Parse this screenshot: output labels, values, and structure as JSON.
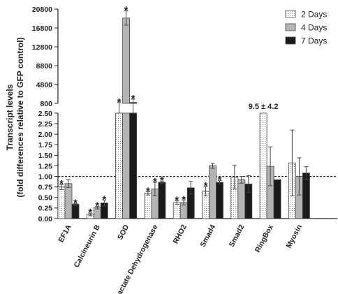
{
  "chart_data": {
    "type": "bar",
    "ylabel": "Transcript levels (fold differences relative to GFP control)",
    "categories": [
      "EF1A",
      "Calcineurin B",
      "SOD",
      "Lactate Dehydrogenase",
      "RHO2",
      "Smad4",
      "Smad2",
      "RingBox",
      "Myosin"
    ],
    "series": [
      {
        "name": "2 Days",
        "pattern": "dotted",
        "values": [
          0.75,
          0.1,
          800,
          0.6,
          0.38,
          0.65,
          0.98,
          9.5,
          1.32
        ],
        "errors": [
          0.06,
          0.03,
          150,
          0.04,
          0.04,
          0.11,
          0.28,
          4.2,
          0.78
        ],
        "significant": [
          true,
          true,
          true,
          true,
          true,
          true,
          false,
          false,
          false
        ]
      },
      {
        "name": "4 Days",
        "color": "#b4b4b4",
        "values": [
          0.83,
          0.26,
          18900,
          0.7,
          0.38,
          1.25,
          0.92,
          1.24,
          1.0
        ],
        "errors": [
          0.09,
          0.03,
          1500,
          0.16,
          0.06,
          0.06,
          0.08,
          0.46,
          0.44
        ],
        "significant": [
          false,
          true,
          true,
          true,
          true,
          false,
          false,
          false,
          false
        ]
      },
      {
        "name": "7 Days",
        "color": "#1a1a1a",
        "values": [
          0.34,
          0.37,
          1000,
          0.86,
          0.73,
          0.86,
          0.82,
          0.92,
          1.08
        ],
        "errors": [
          0.02,
          0.07,
          700,
          0.03,
          0.15,
          0.04,
          0.2,
          0.0,
          0.15
        ],
        "significant": [
          true,
          true,
          true,
          true,
          false,
          true,
          false,
          false,
          false
        ]
      }
    ],
    "y_axis": {
      "broken": true,
      "lower_range": [
        0,
        2.5
      ],
      "lower_ticks": [
        "0.00",
        "0.25",
        "0.50",
        "0.75",
        "1.00",
        "1.25",
        "1.50",
        "1.75",
        "2.00",
        "2.25",
        "2.50"
      ],
      "upper_range": [
        800,
        20800
      ],
      "upper_ticks": [
        "800",
        "4800",
        "8800",
        "12800",
        "16800",
        "20800"
      ]
    },
    "reference_line": 1.0,
    "annotation": "9.5 ± 4.2",
    "significance_marker": "*",
    "legend_position": "top-right",
    "grid": false
  }
}
